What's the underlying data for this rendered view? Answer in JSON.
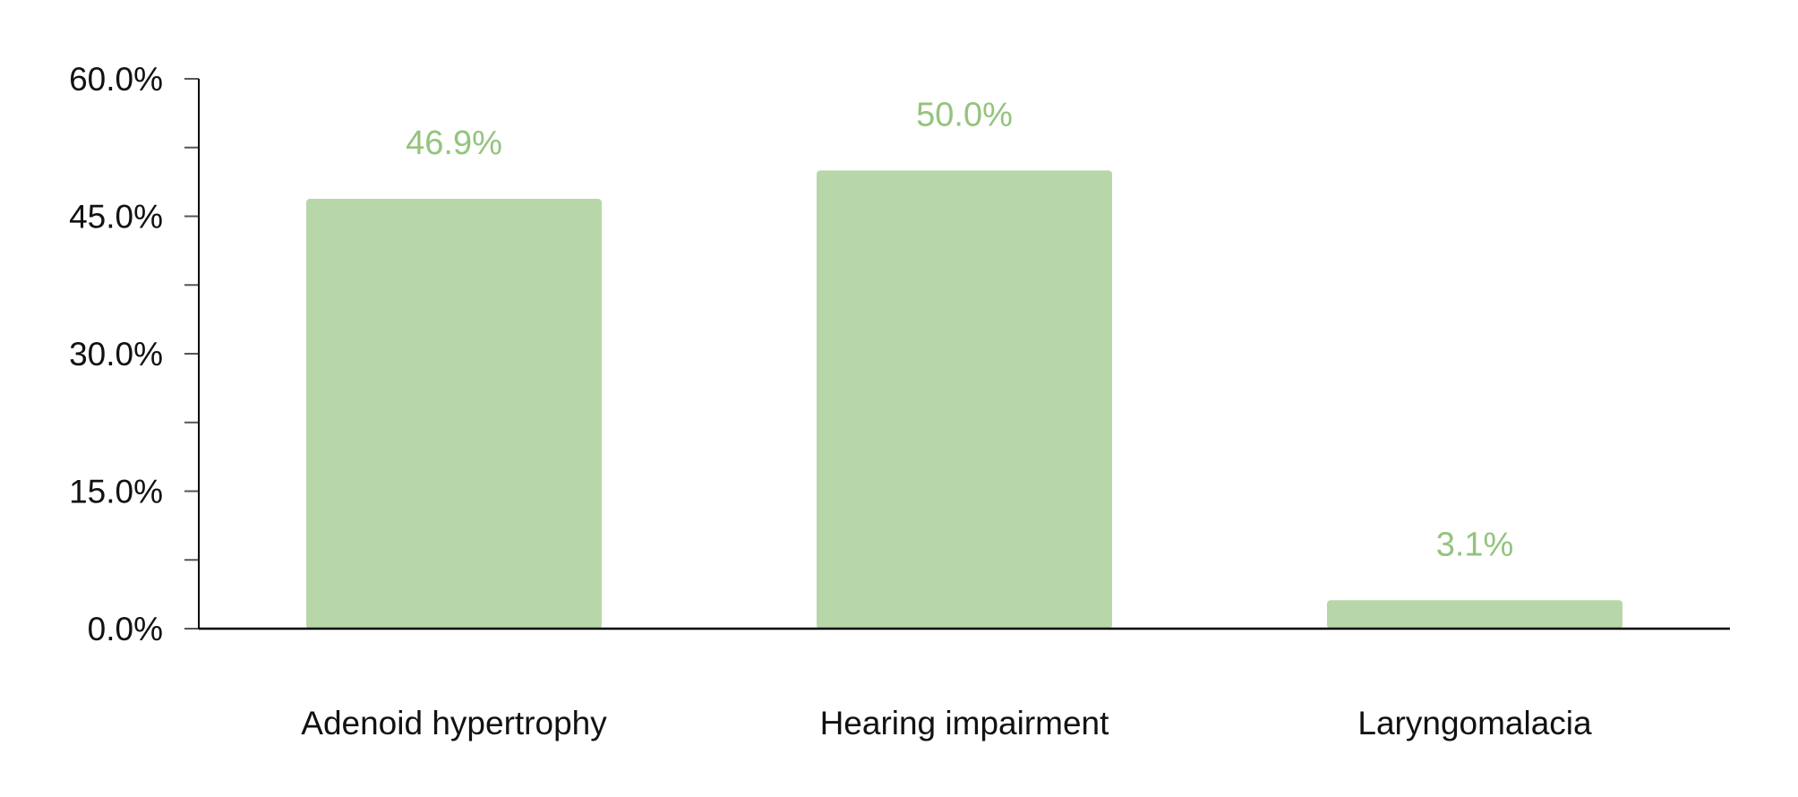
{
  "chart_data": {
    "type": "bar",
    "categories": [
      "Adenoid hypertrophy",
      "Hearing impairment",
      "Laryngomalacia"
    ],
    "values": [
      46.9,
      50.0,
      3.1
    ],
    "data_labels": [
      "46.9%",
      "50.0%",
      "3.1%"
    ],
    "title": "",
    "xlabel": "",
    "ylabel": "",
    "ylim": [
      0,
      60
    ],
    "yticks": [
      0,
      15,
      30,
      45,
      60
    ],
    "ytick_labels": [
      "0.0%",
      "15.0%",
      "30.0%",
      "45.0%",
      "60.0%"
    ],
    "grid": false,
    "legend": "none",
    "colors": {
      "bar": "#b7d7a8",
      "data_label": "#93c47d",
      "axis": "#000000"
    }
  }
}
